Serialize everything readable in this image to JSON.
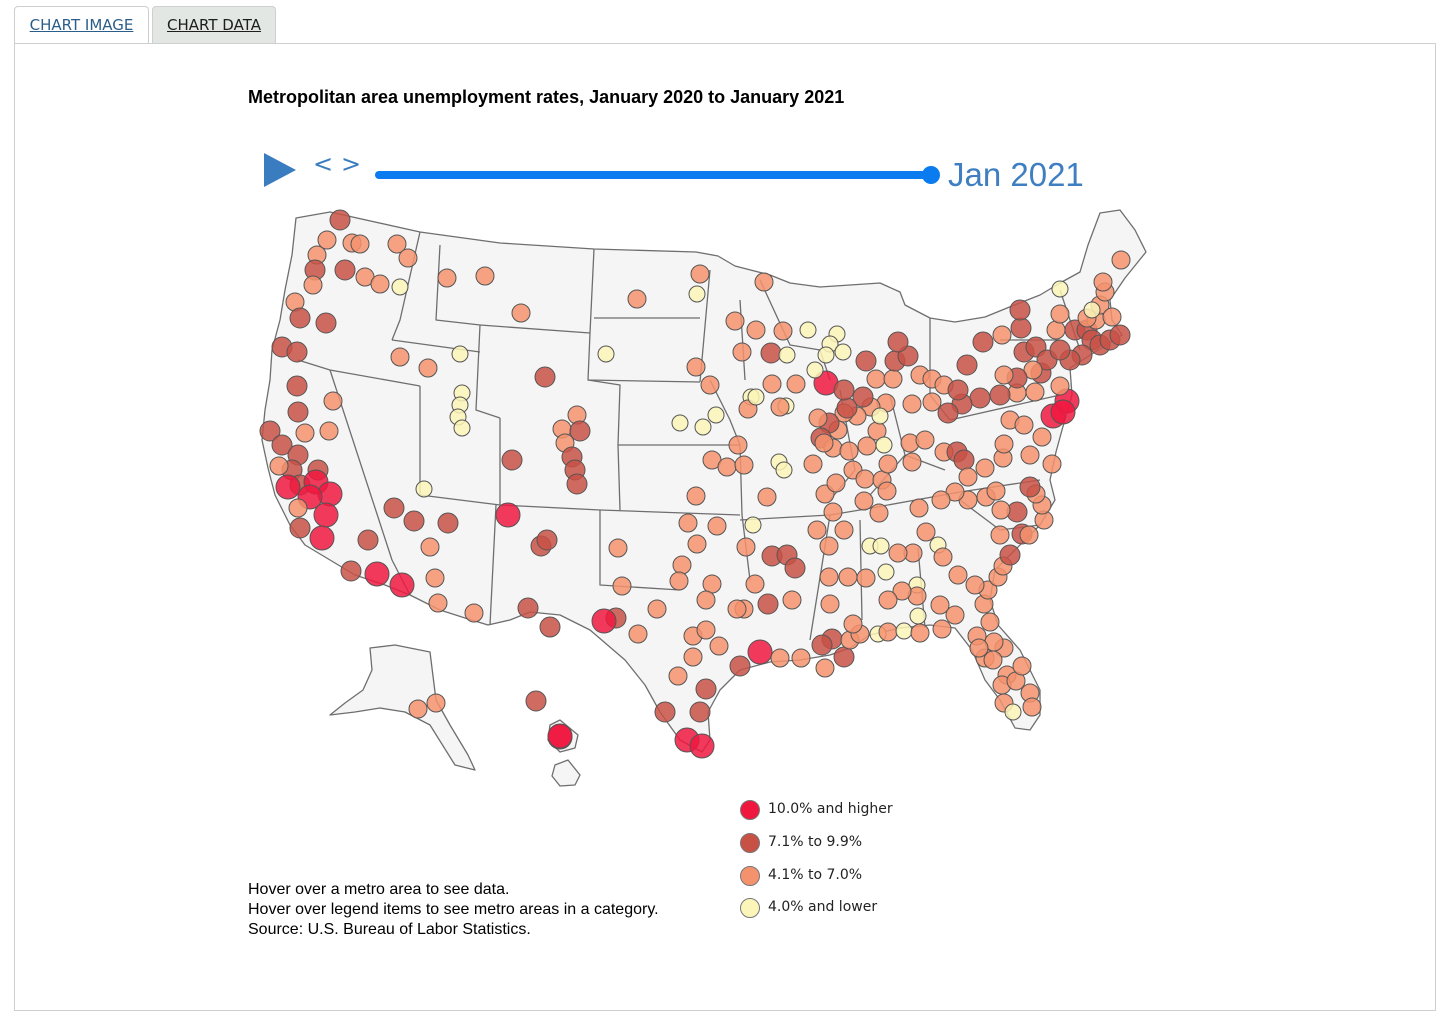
{
  "tabs": [
    {
      "label": "CHART IMAGE",
      "active": true
    },
    {
      "label": "CHART DATA",
      "active": false
    }
  ],
  "title": "Metropolitan area unemployment rates, January 2020 to January 2021",
  "controls": {
    "play_icon": "play-icon",
    "prev_label": "<",
    "next_label": ">",
    "slider_position": 1.0,
    "current_date": "Jan 2021"
  },
  "legend": [
    {
      "label": "10.0% and higher",
      "color": "#f0173f"
    },
    {
      "label": "7.1% to 9.9%",
      "color": "#c85146"
    },
    {
      "label": "4.1% to 7.0%",
      "color": "#f4926d"
    },
    {
      "label": "4.0% and lower",
      "color": "#fbf5b9"
    }
  ],
  "notes": [
    "Hover over a metro area to see data.",
    "Hover over legend items to see metro areas in a category.",
    "Source: U.S. Bureau of Labor Statistics."
  ],
  "map_style": {
    "land": "#f5f5f5",
    "border": "#6e6e6e",
    "marker_stroke": "#555555"
  }
}
